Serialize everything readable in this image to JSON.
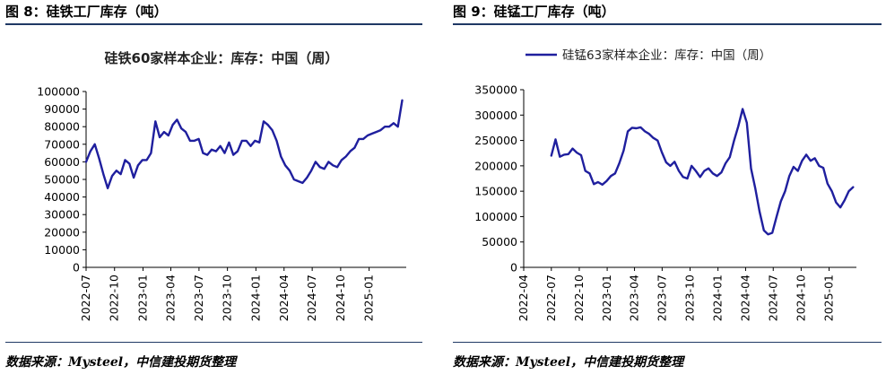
{
  "figures": [
    {
      "title": "图 8：硅铁工厂库存（吨）",
      "source": "数据来源：Mysteel，中信建投期货整理"
    },
    {
      "title": "图 9：硅锰工厂库存（吨）",
      "source": "数据来源：Mysteel，中信建投期货整理"
    }
  ],
  "chart_data": [
    {
      "type": "line",
      "title": "硅铁60家样本企业：库存：中国（周）",
      "legend": "none",
      "color": "#1f1f9e",
      "grid": false,
      "ylim": [
        0,
        100000
      ],
      "yticks": [
        0,
        10000,
        20000,
        30000,
        40000,
        50000,
        60000,
        70000,
        80000,
        90000,
        100000
      ],
      "xlim": [
        "2022-07",
        "2025-05"
      ],
      "xticks": [
        "2022-07",
        "2022-10",
        "2023-01",
        "2023-04",
        "2023-07",
        "2023-10",
        "2024-01",
        "2024-04",
        "2024-07",
        "2024-10",
        "2025-01"
      ],
      "series": [
        {
          "x": [
            "2022-07-01",
            "2022-07-15",
            "2022-07-29",
            "2022-08-12",
            "2022-08-26",
            "2022-09-09",
            "2022-09-23",
            "2022-10-07",
            "2022-10-21",
            "2022-11-04",
            "2022-11-18",
            "2022-12-02",
            "2022-12-16",
            "2022-12-30",
            "2023-01-13",
            "2023-01-27",
            "2023-02-10",
            "2023-02-24",
            "2023-03-10",
            "2023-03-24",
            "2023-04-07",
            "2023-04-21",
            "2023-05-05",
            "2023-05-19",
            "2023-06-02",
            "2023-06-16",
            "2023-06-30",
            "2023-07-14",
            "2023-07-28",
            "2023-08-11",
            "2023-08-25",
            "2023-09-08",
            "2023-09-22",
            "2023-10-06",
            "2023-10-20",
            "2023-11-03",
            "2023-11-17",
            "2023-12-01",
            "2023-12-15",
            "2023-12-29",
            "2024-01-12",
            "2024-01-26",
            "2024-02-09",
            "2024-02-23",
            "2024-03-08",
            "2024-03-22",
            "2024-04-05",
            "2024-04-19",
            "2024-05-03",
            "2024-05-17",
            "2024-05-31",
            "2024-06-14",
            "2024-06-28",
            "2024-07-12",
            "2024-07-26",
            "2024-08-09",
            "2024-08-23",
            "2024-09-06",
            "2024-09-20",
            "2024-10-04",
            "2024-10-18",
            "2024-11-01",
            "2024-11-15",
            "2024-11-29",
            "2024-12-13",
            "2024-12-27",
            "2025-01-10",
            "2025-01-24",
            "2025-02-07",
            "2025-02-21",
            "2025-03-07",
            "2025-03-21",
            "2025-04-04",
            "2025-04-18"
          ],
          "values": [
            60000,
            66000,
            70000,
            62000,
            53000,
            45000,
            52000,
            55000,
            53000,
            61000,
            59000,
            51000,
            58000,
            61000,
            61000,
            65000,
            83000,
            74000,
            77000,
            75000,
            81000,
            84000,
            79000,
            77000,
            72000,
            72000,
            73000,
            65000,
            64000,
            67000,
            66000,
            69000,
            65000,
            71000,
            64000,
            66000,
            72000,
            72000,
            69000,
            72000,
            71000,
            83000,
            81000,
            78000,
            72000,
            63000,
            58000,
            55000,
            50000,
            49000,
            48000,
            51000,
            55000,
            60000,
            57000,
            56000,
            60000,
            58000,
            57000,
            61000,
            63000,
            66000,
            68000,
            73000,
            73000,
            75000,
            76000,
            77000,
            78000,
            80000,
            80000,
            82000,
            80000,
            95000
          ]
        }
      ]
    },
    {
      "type": "line",
      "title": "",
      "legend": "top-center",
      "color": "#1f1f9e",
      "grid": false,
      "ylim": [
        0,
        350000
      ],
      "yticks": [
        0,
        50000,
        100000,
        150000,
        200000,
        250000,
        300000,
        350000
      ],
      "xlim": [
        "2022-04",
        "2025-04"
      ],
      "xticks": [
        "2022-04",
        "2022-07",
        "2022-10",
        "2023-01",
        "2023-04",
        "2023-07",
        "2023-10",
        "2024-01",
        "2024-04",
        "2024-07",
        "2024-10",
        "2025-01"
      ],
      "series": [
        {
          "name": "硅锰63家样本企业：库存：中国（周）",
          "x": [
            "2022-07-01",
            "2022-07-15",
            "2022-07-29",
            "2022-08-12",
            "2022-08-26",
            "2022-09-09",
            "2022-09-23",
            "2022-10-07",
            "2022-10-21",
            "2022-11-04",
            "2022-11-18",
            "2022-12-02",
            "2022-12-16",
            "2022-12-30",
            "2023-01-13",
            "2023-01-27",
            "2023-02-10",
            "2023-02-24",
            "2023-03-10",
            "2023-03-24",
            "2023-04-07",
            "2023-04-21",
            "2023-05-05",
            "2023-05-19",
            "2023-06-02",
            "2023-06-16",
            "2023-06-30",
            "2023-07-14",
            "2023-07-28",
            "2023-08-11",
            "2023-08-25",
            "2023-09-08",
            "2023-09-22",
            "2023-10-06",
            "2023-10-20",
            "2023-11-03",
            "2023-11-17",
            "2023-12-01",
            "2023-12-15",
            "2023-12-29",
            "2024-01-12",
            "2024-01-26",
            "2024-02-09",
            "2024-02-23",
            "2024-03-08",
            "2024-03-22",
            "2024-04-05",
            "2024-04-19",
            "2024-05-03",
            "2024-05-17",
            "2024-05-31",
            "2024-06-14",
            "2024-06-28",
            "2024-07-12",
            "2024-07-26",
            "2024-08-09",
            "2024-08-23",
            "2024-09-06",
            "2024-09-20",
            "2024-10-04",
            "2024-10-18",
            "2024-11-01",
            "2024-11-15",
            "2024-11-29",
            "2024-12-13",
            "2024-12-27",
            "2025-01-10",
            "2025-01-24",
            "2025-02-07",
            "2025-02-21",
            "2025-03-07",
            "2025-03-21"
          ],
          "values": [
            220000,
            252000,
            218000,
            222000,
            223000,
            234000,
            226000,
            221000,
            190000,
            185000,
            164000,
            168000,
            163000,
            170000,
            180000,
            185000,
            205000,
            230000,
            268000,
            275000,
            274000,
            276000,
            268000,
            263000,
            255000,
            250000,
            227000,
            207000,
            200000,
            208000,
            190000,
            178000,
            175000,
            200000,
            190000,
            178000,
            190000,
            195000,
            185000,
            180000,
            187000,
            205000,
            217000,
            250000,
            278000,
            312000,
            285000,
            195000,
            155000,
            110000,
            73000,
            65000,
            68000,
            100000,
            130000,
            150000,
            180000,
            198000,
            190000,
            210000,
            222000,
            210000,
            215000,
            200000,
            196000,
            165000,
            150000,
            128000,
            118000,
            132000,
            150000,
            158000
          ]
        }
      ]
    }
  ]
}
